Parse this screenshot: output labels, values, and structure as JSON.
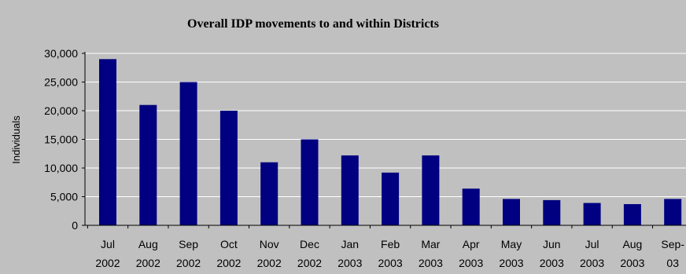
{
  "chart_data": {
    "type": "bar",
    "title": "Overall IDP movements to and within Districts",
    "xlabel": "",
    "ylabel": "Individuals",
    "ylim": [
      0,
      30000
    ],
    "yticks": [
      0,
      5000,
      10000,
      15000,
      20000,
      25000,
      30000
    ],
    "ytick_labels": [
      "0",
      "5,000",
      "10,000",
      "15,000",
      "20,000",
      "25,000",
      "30,000"
    ],
    "grid": true,
    "legend": "none",
    "categories": [
      [
        "Jul",
        "2002"
      ],
      [
        "Aug",
        "2002"
      ],
      [
        "Sep",
        "2002"
      ],
      [
        "Oct",
        "2002"
      ],
      [
        "Nov",
        "2002"
      ],
      [
        "Dec",
        "2002"
      ],
      [
        "Jan",
        "2003"
      ],
      [
        "Feb",
        "2003"
      ],
      [
        "Mar",
        "2003"
      ],
      [
        "Apr",
        "2003"
      ],
      [
        "May",
        "2003"
      ],
      [
        "Jun",
        "2003"
      ],
      [
        "Jul",
        "2003"
      ],
      [
        "Aug",
        "2003"
      ],
      [
        "Sep-",
        "03"
      ]
    ],
    "values": [
      29000,
      21000,
      25000,
      20000,
      11000,
      15000,
      12200,
      9200,
      12200,
      6400,
      4600,
      4400,
      3900,
      3700,
      4600
    ],
    "colors": {
      "background": "#c0c0c0",
      "bar": "#000080",
      "grid": "#ffffff",
      "axis": "#000000"
    }
  }
}
